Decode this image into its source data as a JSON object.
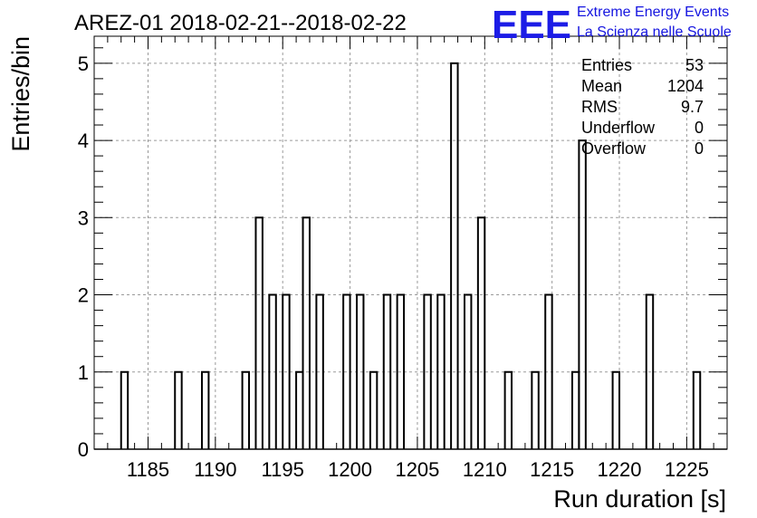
{
  "logo": {
    "letters": "EEE",
    "line1": "Extreme Energy Events",
    "line2": "La Scienza nelle Scuole",
    "color": "#1c1ce6"
  },
  "stats": {
    "rows": [
      {
        "label": "Entries",
        "value": "53"
      },
      {
        "label": "Mean",
        "value": "1204"
      },
      {
        "label": "RMS",
        "value": "9.7"
      },
      {
        "label": "Underflow",
        "value": "0"
      },
      {
        "label": "Overflow",
        "value": "0"
      }
    ]
  },
  "chart_data": {
    "type": "bar",
    "style": "step-histogram",
    "title": "AREZ-01 2018-02-21--2018-02-22",
    "xlabel": "Run duration [s]",
    "ylabel": "Entries/bin",
    "xlim": [
      1181,
      1228
    ],
    "ylim": [
      0,
      5.35
    ],
    "bin_width": 0.5,
    "x_ticks": [
      1185,
      1190,
      1195,
      1200,
      1205,
      1210,
      1215,
      1220,
      1225
    ],
    "x_tick_labels": [
      "1185",
      "1190",
      "1195",
      "1200",
      "1205",
      "1210",
      "1215",
      "1220",
      "1225"
    ],
    "y_ticks": [
      0,
      1,
      2,
      3,
      4,
      5
    ],
    "y_tick_labels": [
      "0",
      "1",
      "2",
      "3",
      "4",
      "5"
    ],
    "grid": true,
    "line_color": "#000000",
    "bins": [
      {
        "x": 1183.0,
        "count": 1
      },
      {
        "x": 1187.0,
        "count": 1
      },
      {
        "x": 1189.0,
        "count": 1
      },
      {
        "x": 1192.0,
        "count": 1
      },
      {
        "x": 1193.0,
        "count": 3
      },
      {
        "x": 1194.0,
        "count": 2
      },
      {
        "x": 1195.0,
        "count": 2
      },
      {
        "x": 1196.0,
        "count": 1
      },
      {
        "x": 1196.5,
        "count": 3
      },
      {
        "x": 1197.5,
        "count": 2
      },
      {
        "x": 1199.5,
        "count": 2
      },
      {
        "x": 1200.5,
        "count": 2
      },
      {
        "x": 1201.5,
        "count": 1
      },
      {
        "x": 1202.5,
        "count": 2
      },
      {
        "x": 1203.5,
        "count": 2
      },
      {
        "x": 1205.5,
        "count": 2
      },
      {
        "x": 1206.5,
        "count": 2
      },
      {
        "x": 1207.5,
        "count": 5
      },
      {
        "x": 1208.5,
        "count": 2
      },
      {
        "x": 1209.5,
        "count": 3
      },
      {
        "x": 1211.5,
        "count": 1
      },
      {
        "x": 1213.5,
        "count": 1
      },
      {
        "x": 1214.5,
        "count": 2
      },
      {
        "x": 1216.5,
        "count": 1
      },
      {
        "x": 1217.0,
        "count": 4
      },
      {
        "x": 1219.5,
        "count": 1
      },
      {
        "x": 1222.0,
        "count": 2
      },
      {
        "x": 1225.5,
        "count": 1
      }
    ]
  }
}
